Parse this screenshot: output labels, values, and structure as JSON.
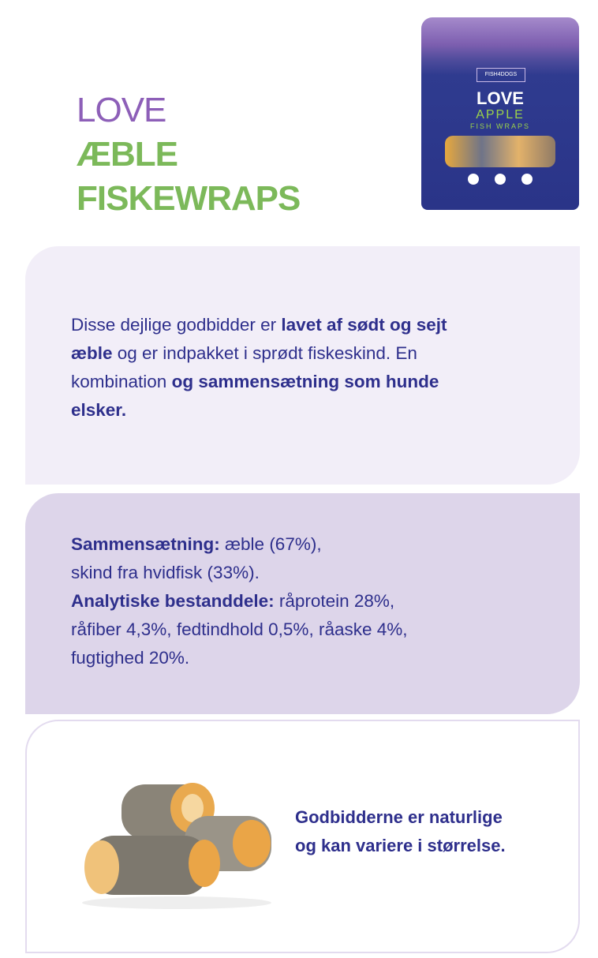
{
  "title": {
    "line1": "LOVE",
    "line2": "ÆBLE",
    "line3": "FISKEWRAPS"
  },
  "product_image": {
    "brand": "FISH4DOGS",
    "name": "LOVE",
    "flavor": "APPLE",
    "type": "FISH WRAPS"
  },
  "description": {
    "lines": [
      [
        {
          "t": "Disse dejlige godbidder er ",
          "b": false
        },
        {
          "t": "lavet af sødt og sejt",
          "b": true
        }
      ],
      [
        {
          "t": "æble",
          "b": true
        },
        {
          "t": " og er indpakket i sprødt fiskeskind. En",
          "b": false
        }
      ],
      [
        {
          "t": "kombination ",
          "b": false
        },
        {
          "t": "og sammensætning som hunde",
          "b": true
        }
      ],
      [
        {
          "t": "elsker.",
          "b": true
        }
      ]
    ]
  },
  "composition": {
    "lines": [
      [
        {
          "t": "Sammensætning:",
          "b": true
        },
        {
          "t": " æble (67%),",
          "b": false
        }
      ],
      [
        {
          "t": "skind fra hvidfisk (33%).",
          "b": false
        }
      ],
      [
        {
          "t": "Analytiske bestanddele:",
          "b": true
        },
        {
          "t": " råprotein 28%,",
          "b": false
        }
      ],
      [
        {
          "t": "råfiber 4,3%, fedtindhold 0,5%, råaske 4%,",
          "b": false
        }
      ],
      [
        {
          "t": "fugtighed 20%.",
          "b": false
        }
      ]
    ]
  },
  "note": {
    "line1": "Godbidderne er naturlige",
    "line2": "og kan variere i størrelse."
  },
  "colors": {
    "text": "#2e2f8c",
    "purple": "#8d5fb8",
    "green": "#7cb95a",
    "card1": "#f2eef8",
    "card2": "#ddd5ea"
  }
}
